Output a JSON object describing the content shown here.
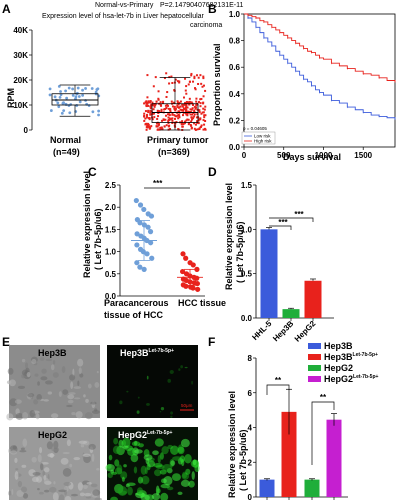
{
  "panel_labels": {
    "A": "A",
    "B": "B",
    "C": "C",
    "D": "D",
    "E": "E",
    "F": "F"
  },
  "colors": {
    "blue": "#3b5bdb",
    "red": "#e8221c",
    "scatterBlue": "#6f9fd8",
    "green": "#1fae3a",
    "magenta": "#c51fd0",
    "microGreen": "#26d526"
  },
  "chart_data": [
    {
      "id": "A",
      "type": "scatter",
      "title_line1": "Normal-vs-Primary",
      "title_pvalue": "P=2.14790407682131E-11",
      "title_line2": "Expression level of  hsa-let-7b in Liver hepatocellular",
      "title_line3": "carcinoma",
      "ylabel": "RPM",
      "ylim": [
        0,
        40000
      ],
      "yticks": [
        "0",
        "10K",
        "20K",
        "30K",
        "40K"
      ],
      "yticks_values": [
        0,
        10000,
        20000,
        30000,
        40000
      ],
      "groups": [
        {
          "name": "Normal",
          "n": "(n=49)",
          "count": 49,
          "median": 12000,
          "q1": 10000,
          "q3": 14500,
          "min": 5500,
          "max": 18000,
          "spread_low": 6000,
          "spread_high": 17500
        },
        {
          "name": "Primary tumor",
          "n": "(n=369)",
          "count": 369,
          "median": 7000,
          "q1": 3000,
          "q3": 10500,
          "min": 0,
          "max": 21000,
          "spread_low": 0,
          "spread_high": 23000
        }
      ]
    },
    {
      "id": "B",
      "type": "line",
      "ylabel": "Proportion survival",
      "xlabel": "Days survival",
      "xlim": [
        0,
        1900
      ],
      "ylim": [
        0,
        1.0
      ],
      "xticks": [
        "0",
        "500",
        "1000",
        "1500"
      ],
      "xticks_values": [
        0,
        500,
        1000,
        1500
      ],
      "yticks": [
        "0.0",
        "0.2",
        "0.4",
        "0.6",
        "0.8",
        "1.0"
      ],
      "yticks_values": [
        0,
        0.2,
        0.4,
        0.6,
        0.8,
        1.0
      ],
      "pvalue": "p = 0.04605",
      "series": [
        {
          "name": "Low risk",
          "color": "#3b5bdb",
          "x": [
            0,
            50,
            100,
            150,
            200,
            250,
            300,
            350,
            400,
            450,
            500,
            550,
            600,
            650,
            700,
            750,
            800,
            850,
            900,
            950,
            1000,
            1100,
            1200,
            1300,
            1400,
            1500,
            1600,
            1700,
            1800,
            1900
          ],
          "y": [
            1.0,
            0.97,
            0.94,
            0.9,
            0.86,
            0.82,
            0.79,
            0.76,
            0.72,
            0.69,
            0.66,
            0.63,
            0.6,
            0.57,
            0.54,
            0.51,
            0.49,
            0.46,
            0.43,
            0.41,
            0.39,
            0.35,
            0.33,
            0.3,
            0.28,
            0.26,
            0.24,
            0.23,
            0.22,
            0.21
          ]
        },
        {
          "name": "High risk",
          "color": "#e8221c",
          "x": [
            0,
            50,
            100,
            150,
            200,
            250,
            300,
            350,
            400,
            450,
            500,
            550,
            600,
            650,
            700,
            750,
            800,
            850,
            900,
            950,
            1000,
            1100,
            1200,
            1300,
            1400,
            1500,
            1600,
            1700,
            1800,
            1900
          ],
          "y": [
            1.0,
            0.99,
            0.98,
            0.97,
            0.95,
            0.94,
            0.92,
            0.9,
            0.88,
            0.86,
            0.84,
            0.82,
            0.8,
            0.78,
            0.76,
            0.74,
            0.72,
            0.71,
            0.69,
            0.67,
            0.66,
            0.63,
            0.61,
            0.59,
            0.57,
            0.55,
            0.54,
            0.52,
            0.5,
            0.49
          ]
        }
      ]
    },
    {
      "id": "C",
      "type": "scatter",
      "ylabel": "Relative expression level",
      "ylabel2": "( Let 7b-5p/u6)",
      "ylim": [
        0,
        2.5
      ],
      "yticks": [
        "0.0",
        "0.5",
        "1.0",
        "1.5",
        "2.0",
        "2.5"
      ],
      "yticks_values": [
        0,
        0.5,
        1.0,
        1.5,
        2.0,
        2.5
      ],
      "significance": "***",
      "groups": [
        {
          "name_line1": "Paracancerous",
          "name_line2": "tissue of HCC",
          "mean": 1.25,
          "sd": 0.45,
          "color": "#6f9fd8",
          "values": [
            2.15,
            2.05,
            1.95,
            1.85,
            1.8,
            1.72,
            1.65,
            1.6,
            1.55,
            1.45,
            1.4,
            1.35,
            1.3,
            1.25,
            1.2,
            1.15,
            1.05,
            1.0,
            0.95,
            0.85,
            0.75,
            0.65,
            0.6
          ]
        },
        {
          "name_line1": "HCC tissue",
          "name_line2": "",
          "mean": 0.42,
          "sd": 0.18,
          "color": "#e8221c",
          "values": [
            0.95,
            0.85,
            0.75,
            0.7,
            0.6,
            0.55,
            0.5,
            0.45,
            0.42,
            0.4,
            0.38,
            0.35,
            0.32,
            0.3,
            0.28,
            0.25,
            0.22,
            0.2,
            0.18,
            0.15
          ]
        }
      ]
    },
    {
      "id": "D",
      "type": "bar",
      "ylabel": "Relative expression level",
      "ylabel2": "( Let 7b-5p/u6)",
      "ylim": [
        0,
        1.5
      ],
      "yticks": [
        "0.0",
        "0.5",
        "1.0",
        "1.5"
      ],
      "yticks_values": [
        0,
        0.5,
        1.0,
        1.5
      ],
      "categories": [
        "HHL-5",
        "Hep3B",
        "HepG2"
      ],
      "values": [
        1.0,
        0.1,
        0.42
      ],
      "errors": [
        0.02,
        0.01,
        0.02
      ],
      "colors": [
        "#3b5bdb",
        "#1fae3a",
        "#e8221c"
      ],
      "significance": [
        "***",
        "***"
      ]
    },
    {
      "id": "F",
      "type": "bar",
      "ylabel": "Relative expression level",
      "ylabel2": "( Let 7b-5p/u6)",
      "ylim": [
        0,
        8
      ],
      "yticks": [
        "0",
        "2",
        "4",
        "6",
        "8"
      ],
      "yticks_values": [
        0,
        2,
        4,
        6,
        8
      ],
      "categories": [
        "Hep3B",
        "Hep3B",
        "HepG2",
        "HepG2"
      ],
      "category_sup": [
        "",
        "Let-7b-5p+",
        "",
        "Let-7b-5p+"
      ],
      "values": [
        1.0,
        4.9,
        1.0,
        4.45
      ],
      "errors": [
        0.05,
        1.3,
        0.05,
        0.35
      ],
      "colors": [
        "#3b5bdb",
        "#e8221c",
        "#1fae3a",
        "#c51fd0"
      ],
      "significance": [
        "**",
        "**"
      ],
      "legend_position": "top-right"
    }
  ],
  "panelE": {
    "labels": [
      {
        "text": "Hep3B",
        "sup": ""
      },
      {
        "text": "Hep3B",
        "sup": "Let-7b-5p+"
      },
      {
        "text": "HepG2",
        "sup": ""
      },
      {
        "text": "HepG2",
        "sup": "Let-7b-5p+"
      }
    ],
    "scalebar": "50μm"
  }
}
